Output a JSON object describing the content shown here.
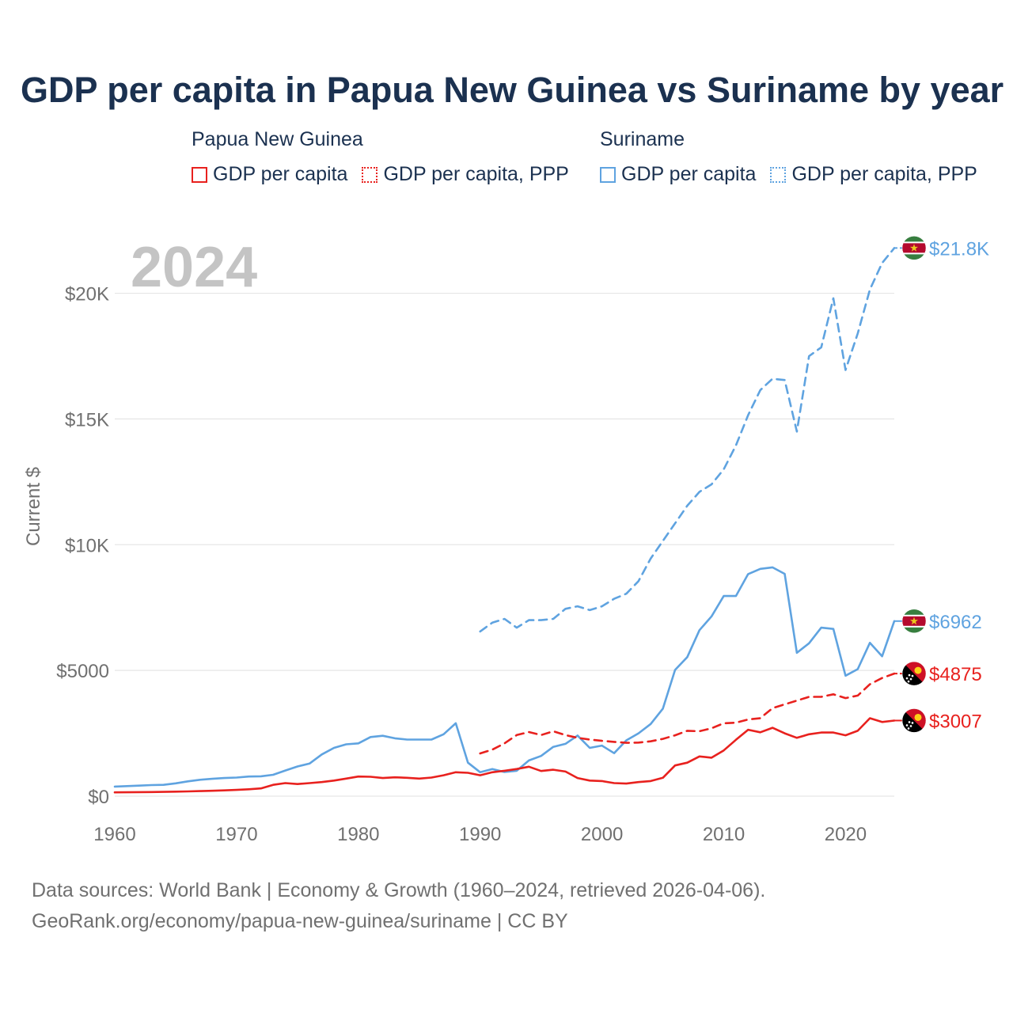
{
  "title": "GDP per capita in Papua New Guinea vs Suriname by year",
  "year_watermark": "2024",
  "legend": {
    "groups": [
      {
        "country": "Papua New Guinea",
        "items": [
          {
            "label": "GDP per capita",
            "style": "solid",
            "color": "#e8211e"
          },
          {
            "label": "GDP per capita, PPP",
            "style": "dotted",
            "color": "#e8211e"
          }
        ]
      },
      {
        "country": "Suriname",
        "items": [
          {
            "label": "GDP per capita",
            "style": "solid",
            "color": "#5fa3e0"
          },
          {
            "label": "GDP per capita, PPP",
            "style": "dotted",
            "color": "#5fa3e0"
          }
        ]
      }
    ]
  },
  "colors": {
    "png": "#e8211e",
    "suriname": "#5fa3e0",
    "title": "#1b3150",
    "axis_text": "#707070",
    "grid": "#e6e6e6",
    "watermark": "#c4c4c4"
  },
  "chart_data": {
    "type": "line",
    "title": "GDP per capita in Papua New Guinea vs Suriname by year",
    "ylabel": "Current $",
    "xlabel": "",
    "xlim": [
      1960,
      2024
    ],
    "ylim": [
      0,
      22000
    ],
    "x_ticks": [
      1960,
      1970,
      1980,
      1990,
      2000,
      2010,
      2020
    ],
    "y_ticks": [
      {
        "value": 0,
        "label": "$0"
      },
      {
        "value": 5000,
        "label": "$5000"
      },
      {
        "value": 10000,
        "label": "$10K"
      },
      {
        "value": 15000,
        "label": "$15K"
      },
      {
        "value": 20000,
        "label": "$20K"
      }
    ],
    "grid": true,
    "series": [
      {
        "name": "Suriname GDP per capita PPP",
        "country": "Suriname",
        "dash": "dashed",
        "color": "#5fa3e0",
        "end_label": "$21.8K",
        "flag": "suriname-flag",
        "x": [
          1990,
          1991,
          1992,
          1993,
          1994,
          1995,
          1996,
          1997,
          1998,
          1999,
          2000,
          2001,
          2002,
          2003,
          2004,
          2005,
          2006,
          2007,
          2008,
          2009,
          2010,
          2011,
          2012,
          2013,
          2014,
          2015,
          2016,
          2017,
          2018,
          2019,
          2020,
          2021,
          2022,
          2023,
          2024
        ],
        "values": [
          6550,
          6900,
          7050,
          6700,
          7000,
          7000,
          7050,
          7450,
          7550,
          7400,
          7550,
          7850,
          8050,
          8550,
          9450,
          10150,
          10850,
          11550,
          12100,
          12400,
          13000,
          13950,
          15150,
          16150,
          16600,
          16550,
          14500,
          17500,
          17850,
          19800,
          16950,
          18400,
          20150,
          21200,
          21800
        ]
      },
      {
        "name": "Suriname GDP per capita",
        "country": "Suriname",
        "dash": "solid",
        "color": "#5fa3e0",
        "end_label": "$6962",
        "flag": "suriname-flag",
        "x": [
          1960,
          1961,
          1962,
          1963,
          1964,
          1965,
          1966,
          1967,
          1968,
          1969,
          1970,
          1971,
          1972,
          1973,
          1974,
          1975,
          1976,
          1977,
          1978,
          1979,
          1980,
          1981,
          1982,
          1983,
          1984,
          1985,
          1986,
          1987,
          1988,
          1989,
          1990,
          1991,
          1992,
          1993,
          1994,
          1995,
          1996,
          1997,
          1998,
          1999,
          2000,
          2001,
          2002,
          2003,
          2004,
          2005,
          2006,
          2007,
          2008,
          2009,
          2010,
          2011,
          2012,
          2013,
          2014,
          2015,
          2016,
          2017,
          2018,
          2019,
          2020,
          2021,
          2022,
          2023,
          2024
        ],
        "values": [
          380,
          400,
          420,
          440,
          450,
          510,
          590,
          650,
          690,
          720,
          740,
          780,
          790,
          850,
          1020,
          1180,
          1300,
          1660,
          1920,
          2060,
          2100,
          2350,
          2400,
          2300,
          2250,
          2250,
          2250,
          2460,
          2900,
          1330,
          950,
          1080,
          960,
          1010,
          1420,
          1600,
          1960,
          2080,
          2410,
          1920,
          2010,
          1710,
          2220,
          2500,
          2870,
          3480,
          5020,
          5530,
          6600,
          7150,
          7960,
          7960,
          8830,
          9040,
          9100,
          8840,
          5700,
          6080,
          6700,
          6650,
          4790,
          5050,
          6100,
          5560,
          6962
        ]
      },
      {
        "name": "Papua New Guinea GDP per capita PPP",
        "country": "Papua New Guinea",
        "dash": "dashed",
        "color": "#e8211e",
        "end_label": "$4875",
        "flag": "png-flag",
        "x": [
          1990,
          1991,
          1992,
          1993,
          1994,
          1995,
          1996,
          1997,
          1998,
          1999,
          2000,
          2001,
          2002,
          2003,
          2004,
          2005,
          2006,
          2007,
          2008,
          2009,
          2010,
          2011,
          2012,
          2013,
          2014,
          2015,
          2016,
          2017,
          2018,
          2019,
          2020,
          2021,
          2022,
          2023,
          2024
        ],
        "values": [
          1700,
          1850,
          2100,
          2430,
          2550,
          2430,
          2580,
          2430,
          2320,
          2250,
          2200,
          2160,
          2120,
          2130,
          2180,
          2280,
          2420,
          2600,
          2580,
          2700,
          2900,
          2920,
          3050,
          3100,
          3500,
          3650,
          3800,
          3950,
          3950,
          4050,
          3900,
          4000,
          4450,
          4700,
          4875
        ]
      },
      {
        "name": "Papua New Guinea GDP per capita",
        "country": "Papua New Guinea",
        "dash": "solid",
        "color": "#e8211e",
        "end_label": "$3007",
        "flag": "png-flag",
        "x": [
          1960,
          1961,
          1962,
          1963,
          1964,
          1965,
          1966,
          1967,
          1968,
          1969,
          1970,
          1971,
          1972,
          1973,
          1974,
          1975,
          1976,
          1977,
          1978,
          1979,
          1980,
          1981,
          1982,
          1983,
          1984,
          1985,
          1986,
          1987,
          1988,
          1989,
          1990,
          1991,
          1992,
          1993,
          1994,
          1995,
          1996,
          1997,
          1998,
          1999,
          2000,
          2001,
          2002,
          2003,
          2004,
          2005,
          2006,
          2007,
          2008,
          2009,
          2010,
          2011,
          2012,
          2013,
          2014,
          2015,
          2016,
          2017,
          2018,
          2019,
          2020,
          2021,
          2022,
          2023,
          2024
        ],
        "values": [
          150,
          155,
          160,
          165,
          170,
          180,
          190,
          200,
          215,
          230,
          250,
          275,
          310,
          450,
          520,
          480,
          520,
          560,
          620,
          700,
          780,
          770,
          720,
          750,
          730,
          700,
          740,
          830,
          950,
          930,
          830,
          950,
          1010,
          1080,
          1170,
          1000,
          1050,
          980,
          720,
          620,
          600,
          520,
          500,
          560,
          600,
          730,
          1220,
          1330,
          1580,
          1530,
          1820,
          2240,
          2640,
          2540,
          2720,
          2500,
          2320,
          2460,
          2530,
          2530,
          2420,
          2600,
          3100,
          2950,
          3007
        ]
      }
    ]
  },
  "source": {
    "line1": "Data sources: World Bank | Economy & Growth (1960–2024, retrieved 2026-04-06).",
    "line2": "GeoRank.org/economy/papua-new-guinea/suriname | CC BY"
  }
}
